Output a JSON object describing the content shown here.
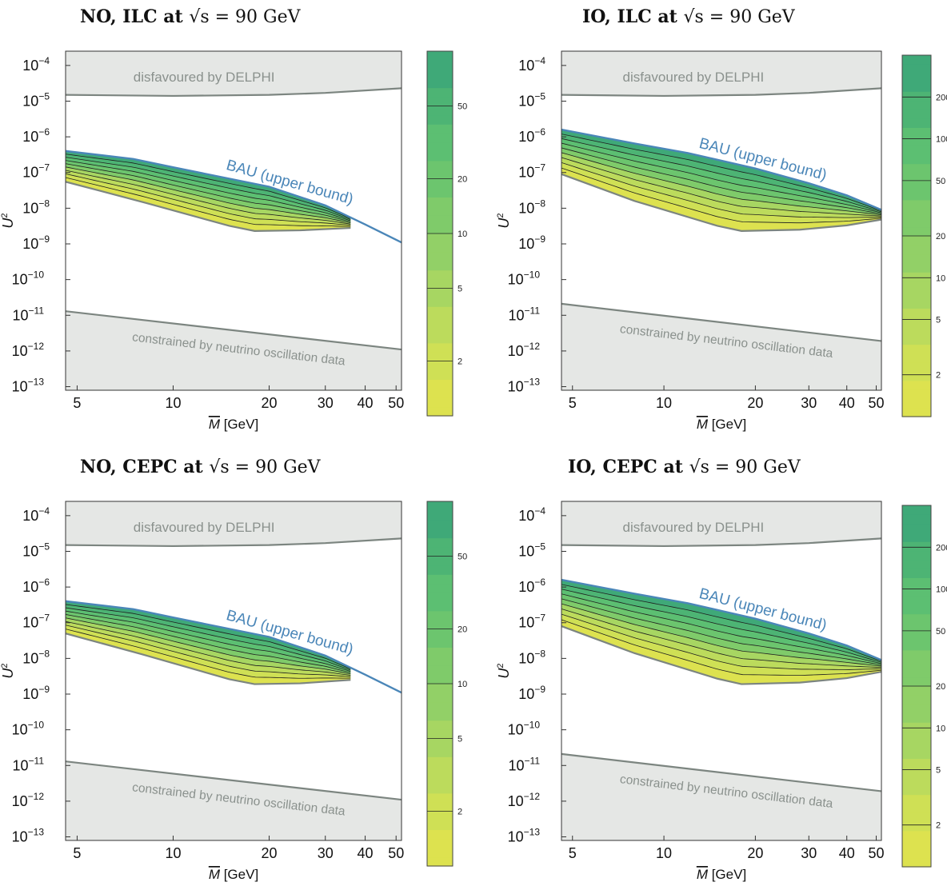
{
  "common": {
    "x_axis_label": "[GeV]",
    "x_axis_symbol": "M",
    "y_axis_label": "U",
    "y_axis_exponent": "2",
    "x_ticks": [
      "5",
      "10",
      "20",
      "30",
      "40",
      "50"
    ],
    "x_tick_values": [
      5,
      10,
      20,
      30,
      40,
      50
    ],
    "y_ticks": [
      {
        "exp": -4,
        "label": "10",
        "sup": "−4"
      },
      {
        "exp": -5,
        "label": "10",
        "sup": "−5"
      },
      {
        "exp": -6,
        "label": "10",
        "sup": "−6"
      },
      {
        "exp": -7,
        "label": "10",
        "sup": "−7"
      },
      {
        "exp": -8,
        "label": "10",
        "sup": "−8"
      },
      {
        "exp": -9,
        "label": "10",
        "sup": "−9"
      },
      {
        "exp": -10,
        "label": "10",
        "sup": "−10"
      },
      {
        "exp": -11,
        "label": "10",
        "sup": "−11"
      },
      {
        "exp": -12,
        "label": "10",
        "sup": "−12"
      },
      {
        "exp": -13,
        "label": "10",
        "sup": "−13"
      }
    ],
    "annotation_delphi": "disfavoured by DELPHI",
    "annotation_bau": "BAU (upper bound)",
    "annotation_oscillation": "constrained by neutrino oscillation data",
    "colors": {
      "excluded_fill": "#e5e7e5",
      "boundary_line": "#7c8580",
      "bau_line": "#4a86b8",
      "delphi_text": "#8a918d",
      "bau_text": "#4a86b8",
      "contour_line": "#1e1e1e"
    }
  },
  "chart_data": [
    {
      "type": "contour",
      "title_prefix": "NO, ILC at ",
      "title_math": "√s = 90 GeV",
      "hierarchy": "NO",
      "experiment": "ILC",
      "xlim": [
        4.6,
        52
      ],
      "ylim_log10": [
        -13.1,
        -3.6
      ],
      "colorbar_ticks": [
        2,
        5,
        10,
        20,
        50
      ],
      "colorbar_labels": [
        "2",
        "5",
        "10",
        "20",
        "50"
      ],
      "colorbar_max": 100,
      "delphi_bound": [
        [
          4.6,
          1.5e-05
        ],
        [
          10,
          1.4e-05
        ],
        [
          20,
          1.5e-05
        ],
        [
          30,
          1.7e-05
        ],
        [
          52,
          2.3e-05
        ]
      ],
      "bau_bound": [
        [
          4.6,
          4e-07
        ],
        [
          7.5,
          2.4e-07
        ],
        [
          10,
          1.4e-07
        ],
        [
          20,
          4e-08
        ],
        [
          30,
          1.2e-08
        ],
        [
          40,
          3.5e-09
        ],
        [
          52,
          1.1e-09
        ]
      ],
      "sensitivity_lower": [
        [
          4.6,
          5.5e-08
        ],
        [
          8,
          1.5e-08
        ],
        [
          15,
          3.2e-09
        ],
        [
          18,
          2.3e-09
        ],
        [
          25,
          2.4e-09
        ],
        [
          36,
          2.8e-09
        ]
      ],
      "osc_bound": [
        [
          4.6,
          1.3e-11
        ],
        [
          52,
          1.1e-12
        ]
      ]
    },
    {
      "type": "contour",
      "title_prefix": "IO, ILC at ",
      "title_math": "√s = 90 GeV",
      "hierarchy": "IO",
      "experiment": "ILC",
      "xlim": [
        4.6,
        52
      ],
      "ylim_log10": [
        -13.1,
        -3.6
      ],
      "colorbar_ticks": [
        2,
        5,
        10,
        20,
        50,
        100,
        200
      ],
      "colorbar_labels": [
        "2",
        "5",
        "10",
        "20",
        "50",
        "100",
        "200"
      ],
      "colorbar_max": 400,
      "delphi_bound": [
        [
          4.6,
          1.5e-05
        ],
        [
          10,
          1.4e-05
        ],
        [
          20,
          1.5e-05
        ],
        [
          30,
          1.7e-05
        ],
        [
          52,
          2.3e-05
        ]
      ],
      "bau_bound": [
        [
          4.6,
          1.6e-06
        ],
        [
          8,
          6.5e-07
        ],
        [
          12,
          3.5e-07
        ],
        [
          20,
          1.3e-07
        ],
        [
          30,
          5e-08
        ],
        [
          40,
          2.3e-08
        ],
        [
          52,
          9e-09
        ]
      ],
      "sensitivity_lower": [
        [
          4.6,
          9e-08
        ],
        [
          8,
          1.6e-08
        ],
        [
          15,
          3.2e-09
        ],
        [
          18,
          2.3e-09
        ],
        [
          28,
          2.5e-09
        ],
        [
          40,
          3.3e-09
        ],
        [
          52,
          4.8e-09
        ]
      ],
      "osc_bound": [
        [
          4.6,
          2.1e-11
        ],
        [
          52,
          1.9e-12
        ]
      ]
    },
    {
      "type": "contour",
      "title_prefix": "NO, CEPC at ",
      "title_math": "√s = 90 GeV",
      "hierarchy": "NO",
      "experiment": "CEPC",
      "xlim": [
        4.6,
        52
      ],
      "ylim_log10": [
        -13.1,
        -3.6
      ],
      "colorbar_ticks": [
        2,
        5,
        10,
        20,
        50
      ],
      "colorbar_labels": [
        "2",
        "5",
        "10",
        "20",
        "50"
      ],
      "colorbar_max": 100,
      "delphi_bound": [
        [
          4.6,
          1.5e-05
        ],
        [
          10,
          1.4e-05
        ],
        [
          20,
          1.5e-05
        ],
        [
          30,
          1.7e-05
        ],
        [
          52,
          2.3e-05
        ]
      ],
      "bau_bound": [
        [
          4.6,
          4e-07
        ],
        [
          7.5,
          2.4e-07
        ],
        [
          10,
          1.4e-07
        ],
        [
          20,
          4e-08
        ],
        [
          30,
          1.2e-08
        ],
        [
          40,
          3.5e-09
        ],
        [
          52,
          1.1e-09
        ]
      ],
      "sensitivity_lower": [
        [
          4.6,
          5e-08
        ],
        [
          8,
          1.3e-08
        ],
        [
          15,
          2.6e-09
        ],
        [
          18,
          1.9e-09
        ],
        [
          25,
          2e-09
        ],
        [
          36,
          2.5e-09
        ]
      ],
      "osc_bound": [
        [
          4.6,
          1.3e-11
        ],
        [
          52,
          1.1e-12
        ]
      ]
    },
    {
      "type": "contour",
      "title_prefix": "IO, CEPC at ",
      "title_math": "√s = 90 GeV",
      "hierarchy": "IO",
      "experiment": "CEPC",
      "xlim": [
        4.6,
        52
      ],
      "ylim_log10": [
        -13.1,
        -3.6
      ],
      "colorbar_ticks": [
        2,
        5,
        10,
        20,
        50,
        100,
        200
      ],
      "colorbar_labels": [
        "2",
        "5",
        "10",
        "20",
        "50",
        "100",
        "200"
      ],
      "colorbar_max": 400,
      "delphi_bound": [
        [
          4.6,
          1.5e-05
        ],
        [
          10,
          1.4e-05
        ],
        [
          20,
          1.5e-05
        ],
        [
          30,
          1.7e-05
        ],
        [
          52,
          2.3e-05
        ]
      ],
      "bau_bound": [
        [
          4.6,
          1.6e-06
        ],
        [
          8,
          6.5e-07
        ],
        [
          12,
          3.5e-07
        ],
        [
          20,
          1.3e-07
        ],
        [
          30,
          5e-08
        ],
        [
          40,
          2.3e-08
        ],
        [
          52,
          9e-09
        ]
      ],
      "sensitivity_lower": [
        [
          4.6,
          8e-08
        ],
        [
          8,
          1.4e-08
        ],
        [
          15,
          2.7e-09
        ],
        [
          18,
          1.9e-09
        ],
        [
          28,
          2.1e-09
        ],
        [
          40,
          2.8e-09
        ],
        [
          52,
          4.2e-09
        ]
      ],
      "osc_bound": [
        [
          4.6,
          2.1e-11
        ],
        [
          52,
          1.9e-12
        ]
      ]
    }
  ]
}
